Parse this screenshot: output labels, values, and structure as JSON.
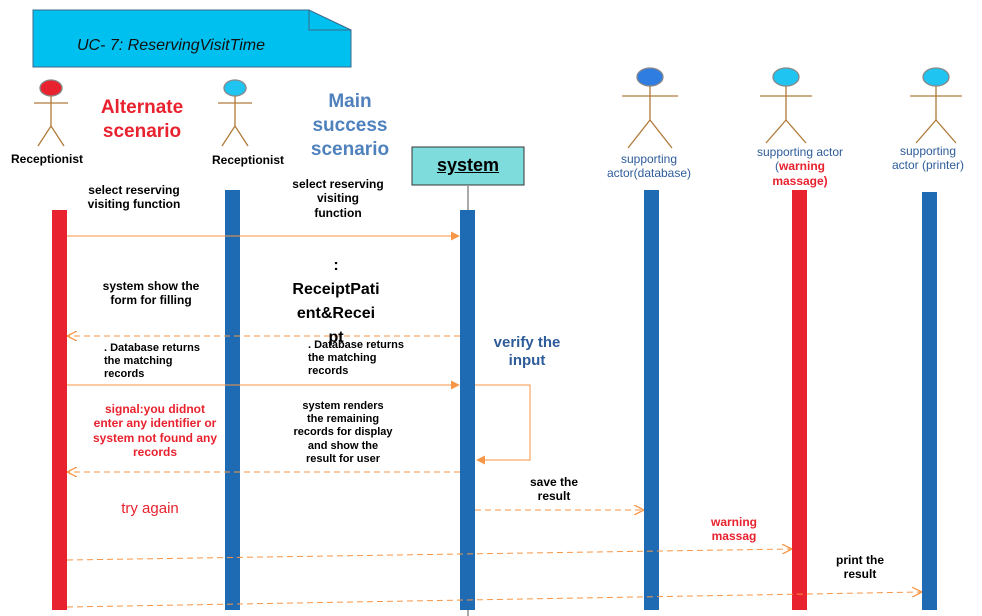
{
  "title": "UC- 7: ReservingVisitTime",
  "headings": {
    "alternate": "Alternate\nscenario",
    "main": "Main\nsuccess\nscenario"
  },
  "actors": {
    "receptionist_alt": "Receptionist",
    "receptionist_main": "Receptionist",
    "system": "system",
    "database": "supporting\nactor(database)",
    "warning_prefix": "supporting actor\n(",
    "warning_word": "warning",
    "warning_suffix": "\nmassage)",
    "printer": "supporting\nactor (printer)"
  },
  "messages": {
    "alt_select": "select reserving\nvisiting function",
    "main_select": "select reserving\nvisiting\nfunction",
    "receipt_object": ":\nReceiptPati\nent&Recei\npt",
    "alt_show_form": "system show the\nform for filling",
    "alt_db_returns": ". Database returns\nthe matching\nrecords",
    "main_db_returns": ". Database returns\nthe matching\nrecords",
    "verify": "verify the\ninput",
    "signal": "signal:you didnot\nenter any identifier or\nsystem not found any\nrecords",
    "renders": "system renders\nthe remaining\nrecords for display\nand show the\nresult for user",
    "try_again": "try again",
    "save": "save the\nresult",
    "warning_msg": "warning\nmassag",
    "print": "print the\nresult"
  },
  "colors": {
    "title_box": "#00c0f0",
    "red_bar": "#e8222e",
    "blue_bar": "#1e6ab3",
    "arrow": "#f79646",
    "system_box": "#7fdcdc",
    "actor_body": "#b07a3a",
    "head_cyan": "#20c4f0",
    "head_red": "#e8222e",
    "head_blue": "#2f7de0"
  }
}
